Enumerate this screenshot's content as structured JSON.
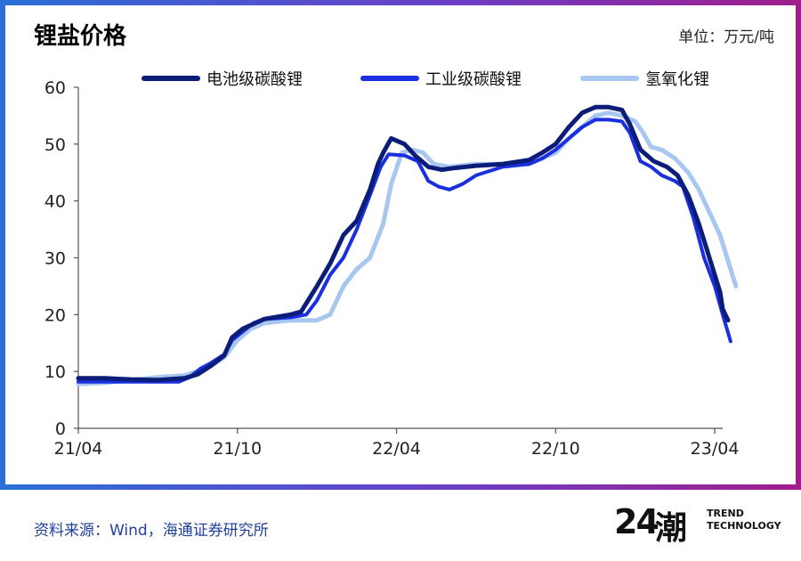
{
  "header": {
    "title": "锂盐价格",
    "unit": "单位：万元/吨"
  },
  "footer": {
    "source": "资料来源：Wind，海通证券研究所"
  },
  "logo": {
    "number": "24",
    "glyph": "潮",
    "line1": "TREND",
    "line2": "TECHNOLOGY"
  },
  "chart_data": {
    "type": "line",
    "xlabel": "",
    "ylabel": "",
    "ylim": [
      0,
      60
    ],
    "yticks": [
      0,
      10,
      20,
      30,
      40,
      50,
      60
    ],
    "xlim": [
      0,
      24.3
    ],
    "xticks": [
      {
        "value": 0,
        "label": "21/04"
      },
      {
        "value": 6,
        "label": "21/10"
      },
      {
        "value": 12,
        "label": "22/04"
      },
      {
        "value": 18,
        "label": "22/10"
      },
      {
        "value": 24,
        "label": "23/04"
      }
    ],
    "grid": false,
    "legend": "top",
    "series": [
      {
        "name": "电池级碳酸锂",
        "color": "#0b1d78",
        "width": 5,
        "points": [
          [
            0,
            8.8
          ],
          [
            1,
            8.8
          ],
          [
            2,
            8.6
          ],
          [
            3,
            8.5
          ],
          [
            4,
            8.8
          ],
          [
            4.5,
            9.5
          ],
          [
            5,
            11
          ],
          [
            5.5,
            12.8
          ],
          [
            5.8,
            16
          ],
          [
            6.2,
            17.5
          ],
          [
            7,
            19.2
          ],
          [
            8,
            20
          ],
          [
            8.4,
            20.5
          ],
          [
            9,
            25
          ],
          [
            9.5,
            29
          ],
          [
            10,
            34
          ],
          [
            10.5,
            36.5
          ],
          [
            11,
            42
          ],
          [
            11.3,
            46.5
          ],
          [
            11.5,
            48.5
          ],
          [
            11.8,
            51
          ],
          [
            12.3,
            50
          ],
          [
            12.7,
            48
          ],
          [
            13.2,
            46
          ],
          [
            13.7,
            45.5
          ],
          [
            14.2,
            45.8
          ],
          [
            15,
            46.2
          ],
          [
            16,
            46.5
          ],
          [
            17,
            47.2
          ],
          [
            17.5,
            48.5
          ],
          [
            18,
            50
          ],
          [
            18.5,
            53
          ],
          [
            19,
            55.5
          ],
          [
            19.5,
            56.5
          ],
          [
            20,
            56.5
          ],
          [
            20.5,
            56
          ],
          [
            20.8,
            53.5
          ],
          [
            21.2,
            49
          ],
          [
            21.7,
            47
          ],
          [
            22.2,
            46
          ],
          [
            22.6,
            44.5
          ],
          [
            23,
            41
          ],
          [
            23.4,
            36
          ],
          [
            23.8,
            30
          ],
          [
            24.2,
            24
          ],
          [
            24.3,
            21
          ],
          [
            24.5,
            19
          ]
        ]
      },
      {
        "name": "工业级碳酸锂",
        "color": "#1a2fe0",
        "width": 4,
        "points": [
          [
            0,
            8.2
          ],
          [
            1,
            8.2
          ],
          [
            2,
            8.2
          ],
          [
            3,
            8.2
          ],
          [
            3.8,
            8.2
          ],
          [
            4.2,
            9
          ],
          [
            4.6,
            10.5
          ],
          [
            5,
            11.5
          ],
          [
            5.5,
            13
          ],
          [
            5.8,
            15.5
          ],
          [
            6.2,
            17
          ],
          [
            6.6,
            18.5
          ],
          [
            7,
            19.2
          ],
          [
            8,
            19.5
          ],
          [
            8.6,
            20
          ],
          [
            9,
            22.5
          ],
          [
            9.5,
            27
          ],
          [
            10,
            30
          ],
          [
            10.5,
            35
          ],
          [
            11,
            41
          ],
          [
            11.4,
            46
          ],
          [
            11.7,
            48.2
          ],
          [
            12.3,
            48
          ],
          [
            12.8,
            47
          ],
          [
            13.2,
            43.5
          ],
          [
            13.6,
            42.5
          ],
          [
            14,
            42
          ],
          [
            14.5,
            43
          ],
          [
            15,
            44.5
          ],
          [
            16,
            46
          ],
          [
            17,
            46.5
          ],
          [
            17.5,
            47.5
          ],
          [
            18,
            49
          ],
          [
            18.5,
            51
          ],
          [
            19,
            53
          ],
          [
            19.5,
            54.3
          ],
          [
            20,
            54.3
          ],
          [
            20.5,
            54
          ],
          [
            20.8,
            52
          ],
          [
            21.2,
            47
          ],
          [
            21.6,
            46
          ],
          [
            22,
            44.5
          ],
          [
            22.5,
            43.5
          ],
          [
            22.8,
            42.5
          ],
          [
            23.2,
            37
          ],
          [
            23.6,
            30
          ],
          [
            24,
            25
          ],
          [
            24.3,
            20
          ],
          [
            24.6,
            15.3
          ]
        ]
      },
      {
        "name": "氢氧化锂",
        "color": "#a7c7f0",
        "width": 5,
        "points": [
          [
            0,
            7.8
          ],
          [
            1,
            8
          ],
          [
            2,
            8.5
          ],
          [
            3,
            9
          ],
          [
            4,
            9.3
          ],
          [
            4.5,
            10
          ],
          [
            5,
            11
          ],
          [
            5.5,
            12.5
          ],
          [
            6,
            15.5
          ],
          [
            6.5,
            17.5
          ],
          [
            7,
            18.5
          ],
          [
            8,
            19
          ],
          [
            8.5,
            19
          ],
          [
            9,
            19
          ],
          [
            9.5,
            20
          ],
          [
            10,
            25
          ],
          [
            10.5,
            28
          ],
          [
            11,
            30
          ],
          [
            11.5,
            36
          ],
          [
            11.8,
            43
          ],
          [
            12.2,
            48.5
          ],
          [
            12.6,
            49
          ],
          [
            13,
            48.5
          ],
          [
            13.4,
            46.5
          ],
          [
            14,
            46
          ],
          [
            15,
            46.5
          ],
          [
            16,
            46.5
          ],
          [
            17,
            46.5
          ],
          [
            18,
            48.5
          ],
          [
            18.5,
            51
          ],
          [
            19,
            53
          ],
          [
            19.5,
            55
          ],
          [
            20,
            55.5
          ],
          [
            20.5,
            55
          ],
          [
            21,
            54
          ],
          [
            21.3,
            52
          ],
          [
            21.6,
            49.5
          ],
          [
            22,
            49
          ],
          [
            22.5,
            47.5
          ],
          [
            23,
            45
          ],
          [
            23.4,
            42
          ],
          [
            23.8,
            38
          ],
          [
            24.2,
            34
          ],
          [
            24.6,
            28
          ],
          [
            24.8,
            25
          ]
        ]
      }
    ]
  }
}
